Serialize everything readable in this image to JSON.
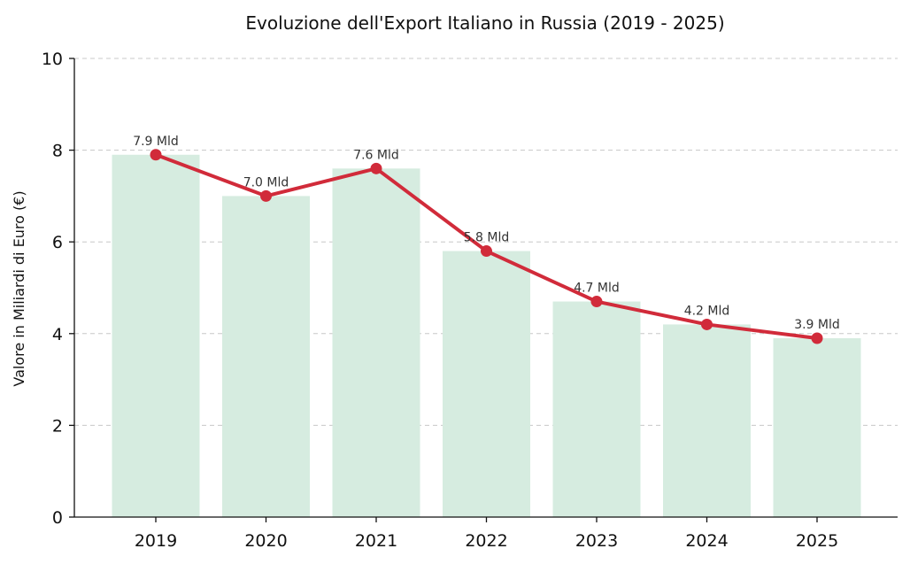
{
  "chart_data": {
    "type": "bar",
    "title": "Evoluzione dell'Export Italiano in Russia (2019 - 2025)",
    "xlabel": "",
    "ylabel": "Valore in Miliardi di Euro (€)",
    "categories": [
      "2019",
      "2020",
      "2021",
      "2022",
      "2023",
      "2024",
      "2025"
    ],
    "values": [
      7.9,
      7.0,
      7.6,
      5.8,
      4.7,
      4.2,
      3.9
    ],
    "data_labels": [
      "7.9 Mld",
      "7.0 Mld",
      "7.6 Mld",
      "5.8 Mld",
      "4.7 Mld",
      "4.2 Mld",
      "3.9 Mld"
    ],
    "overlay": "line-with-markers",
    "ylim": [
      0,
      10
    ],
    "yticks": [
      "0",
      "2",
      "4",
      "6",
      "8",
      "10"
    ],
    "grid": "horizontal-dashed",
    "colors": {
      "bar": "#d6ece0",
      "line": "#d12b3a",
      "grid": "#c8c8c8",
      "axis": "#111111"
    }
  }
}
